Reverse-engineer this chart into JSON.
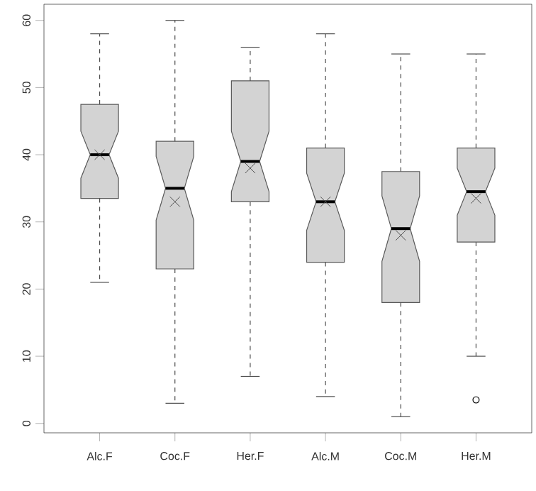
{
  "chart_data": {
    "type": "box",
    "categories": [
      "Alc.F",
      "Coc.F",
      "Her.F",
      "Alc.M",
      "Coc.M",
      "Her.M"
    ],
    "color": "#d3d3d3",
    "boxes": [
      {
        "low": 21,
        "q1": 33.5,
        "median": 40,
        "q3": 47.5,
        "high": 58,
        "mean": 40
      },
      {
        "low": 3,
        "q1": 23,
        "median": 35,
        "q3": 42,
        "high": 60,
        "mean": 33
      },
      {
        "low": 7,
        "q1": 33,
        "median": 39,
        "q3": 51,
        "high": 56,
        "mean": 38
      },
      {
        "low": 4,
        "q1": 24,
        "median": 33,
        "q3": 41,
        "high": 58,
        "mean": 33
      },
      {
        "low": 1,
        "q1": 18,
        "median": 29,
        "q3": 37.5,
        "high": 55,
        "mean": 28
      },
      {
        "low": 10,
        "q1": 27,
        "median": 34.5,
        "q3": 41,
        "high": 55,
        "mean": 33.5,
        "outliers": [
          3.5
        ]
      }
    ],
    "ylim": [
      -1.4,
      62.4
    ],
    "yticks": [
      0,
      10,
      20,
      30,
      40,
      50,
      60
    ]
  }
}
